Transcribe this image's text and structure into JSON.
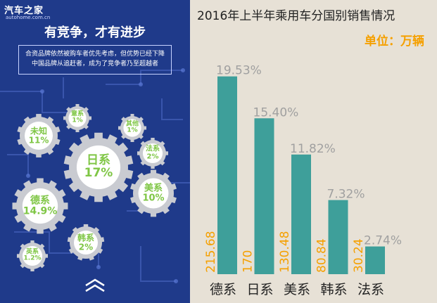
{
  "brand": {
    "name": "汽车之家",
    "domain": "autohome.com.cn"
  },
  "infographic": {
    "headline": "有竞争，才有进步",
    "description_lines": [
      "合资品牌依然被购车者优先考虑，但优势已经下降",
      "中国品牌从追赶者，成为了竞争者乃至超越者"
    ],
    "gears": [
      {
        "name": "日系",
        "value": "17%"
      },
      {
        "name": "德系",
        "value": "14.9%"
      },
      {
        "name": "未知",
        "value": "11%"
      },
      {
        "name": "美系",
        "value": "10%"
      },
      {
        "name": "韩系",
        "value": "2%"
      },
      {
        "name": "法系",
        "value": "2%"
      },
      {
        "name": "意系",
        "value": "1%"
      },
      {
        "name": "其他",
        "value": "1%"
      },
      {
        "name": "英系",
        "value": "1.2%"
      }
    ]
  },
  "colors": {
    "panel_bg": "#1f3a8a",
    "gear": "#c9cbd1",
    "gear_text": "#7fc645",
    "bar": "#3e9f9a",
    "value_label": "#f5a000",
    "pct_label": "#a0a0a0",
    "chart_bg": "#e7e1d6"
  },
  "chart_data": {
    "type": "bar",
    "title": "2016年上半年乘用车分国别销售情况",
    "unit": "单位：万辆",
    "categories": [
      "德系",
      "日系",
      "美系",
      "韩系",
      "法系"
    ],
    "values": [
      215.68,
      170,
      130.48,
      80.84,
      30.24
    ],
    "value_labels": [
      "215.68",
      "170",
      "130.48",
      "80.84",
      "30.24"
    ],
    "percent_labels": [
      "19.53%",
      "15.40%",
      "11.82%",
      "7.32%",
      "2.74%"
    ],
    "ylim": [
      0,
      230
    ],
    "grid": false,
    "legend": "none"
  }
}
